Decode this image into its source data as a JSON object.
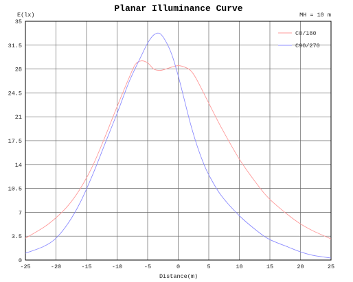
{
  "chart_data": {
    "type": "line",
    "title": "Planar Illuminance Curve",
    "annotation": "MH = 10 m",
    "xlabel": "Distance(m)",
    "ylabel": "E(lx)",
    "xlim": [
      -25,
      25
    ],
    "ylim": [
      0,
      35
    ],
    "x_ticks": [
      -25,
      -20,
      -15,
      -10,
      -5,
      0,
      5,
      10,
      15,
      20,
      25
    ],
    "y_ticks": [
      0,
      3.5,
      7,
      10.5,
      14,
      17.5,
      21,
      24.5,
      28,
      31.5,
      35
    ],
    "grid": true,
    "legend_position": "top-right",
    "colors": {
      "series1": "#ff9a9a",
      "series2": "#8c8cff",
      "grid": "#666666",
      "axis": "#000000"
    },
    "series": [
      {
        "name": "C0/180",
        "x": [
          -25,
          -22,
          -20,
          -18,
          -16,
          -14,
          -12,
          -10,
          -8,
          -7,
          -6,
          -5,
          -4,
          -3,
          -2,
          -1,
          0,
          1,
          2,
          3,
          5,
          7,
          10,
          13,
          15,
          18,
          20,
          22,
          25
        ],
        "y": [
          3.2,
          4.8,
          6.2,
          8.0,
          10.5,
          13.8,
          18.0,
          22.5,
          26.8,
          28.7,
          29.2,
          28.9,
          28.0,
          27.8,
          28.0,
          28.3,
          28.5,
          28.3,
          27.8,
          26.5,
          23.0,
          19.5,
          14.8,
          11.0,
          8.9,
          6.6,
          5.3,
          4.3,
          3.1
        ]
      },
      {
        "name": "C90/270",
        "x": [
          -25,
          -22,
          -20,
          -18,
          -16,
          -14,
          -12,
          -10,
          -8,
          -6,
          -5,
          -4,
          -3,
          -2,
          -1,
          0,
          1,
          2,
          3,
          4,
          5,
          7,
          10,
          13,
          15,
          18,
          20,
          22,
          25
        ],
        "y": [
          1.0,
          2.0,
          3.2,
          5.4,
          8.5,
          12.5,
          17.0,
          21.5,
          26.2,
          30.0,
          31.8,
          33.0,
          33.2,
          32.0,
          30.0,
          27.0,
          23.5,
          20.0,
          17.0,
          14.5,
          12.5,
          9.5,
          6.5,
          4.2,
          3.0,
          1.9,
          1.2,
          0.7,
          0.3
        ]
      }
    ]
  }
}
